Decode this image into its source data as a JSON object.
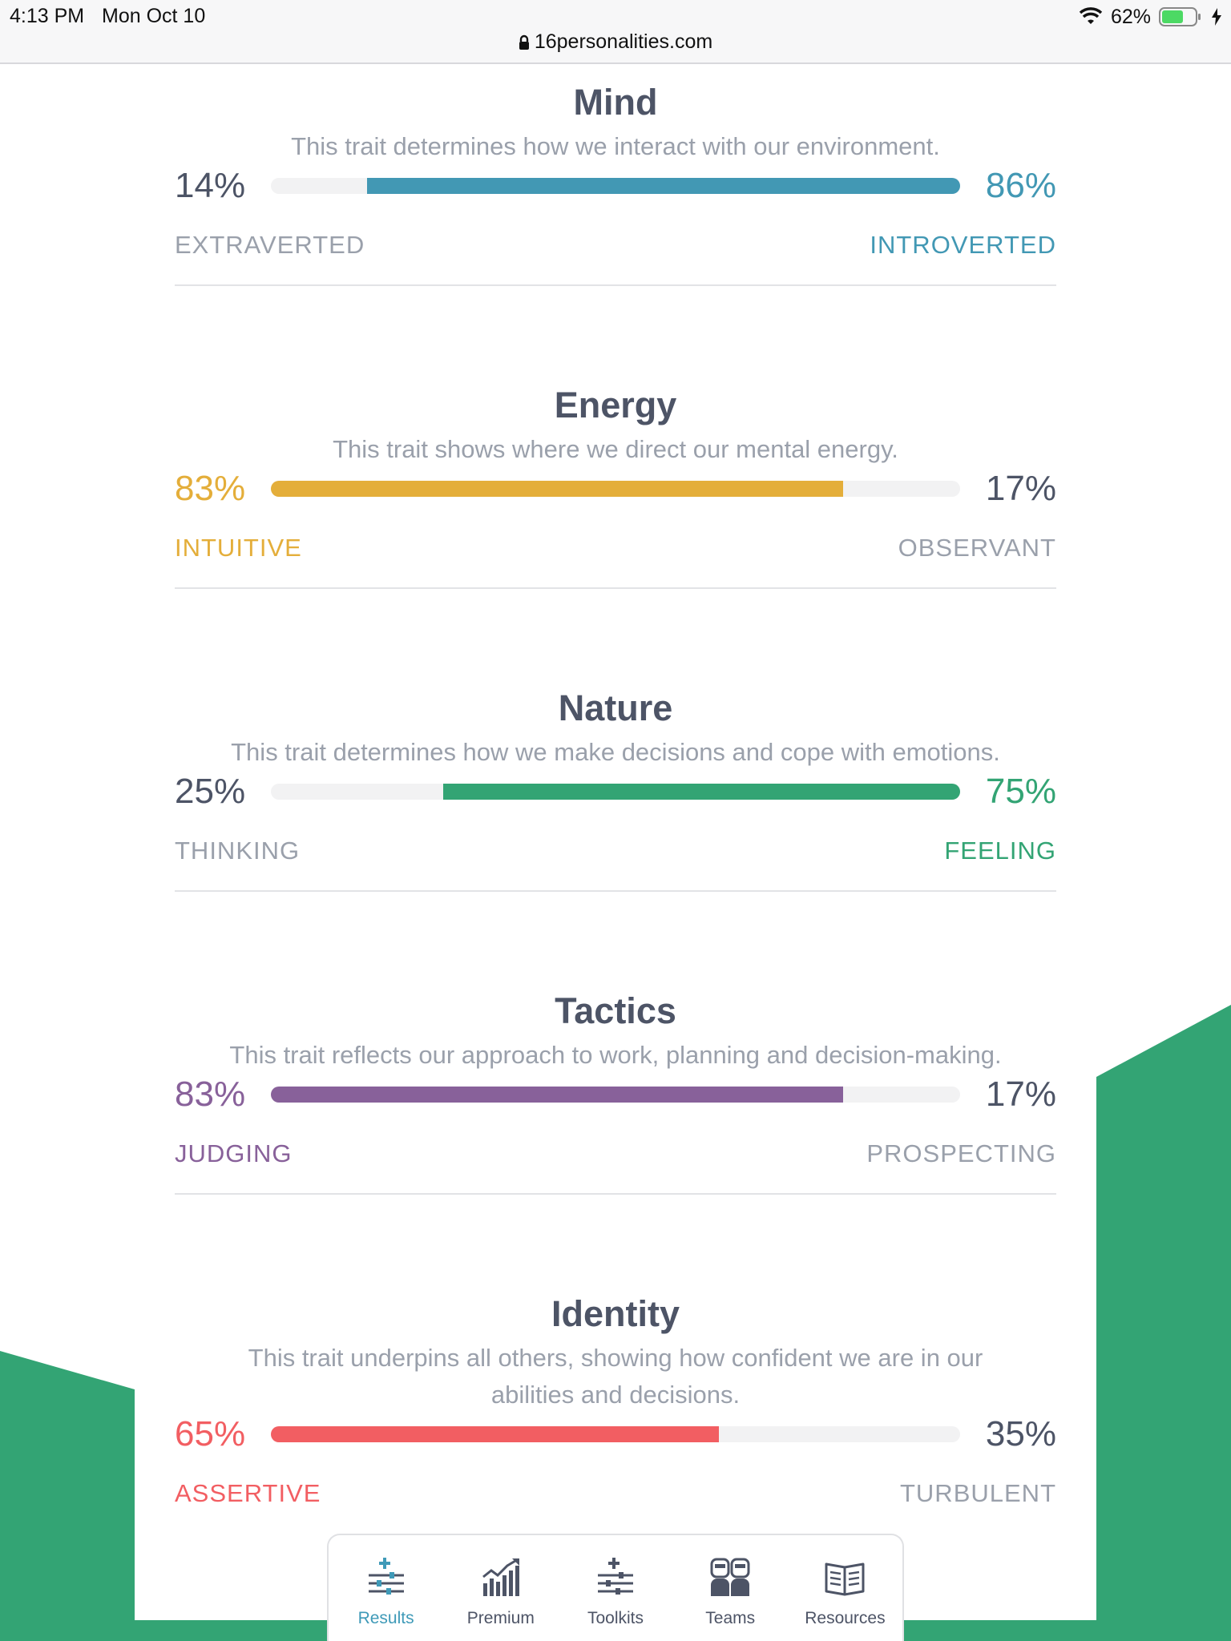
{
  "status_bar": {
    "time": "4:13 PM",
    "date": "Mon Oct 10",
    "battery": "62%",
    "url": "16personalities.com"
  },
  "colors": {
    "mind": "#4298b4",
    "energy": "#e4ae3a",
    "nature": "#33a474",
    "tactics": "#88619a",
    "identity": "#f25e62",
    "green_bg": "#33a474"
  },
  "traits": [
    {
      "title": "Mind",
      "description": "This trait determines how we interact with our environment.",
      "left_pct": "14%",
      "right_pct": "86%",
      "left_label": "EXTRAVERTED",
      "right_label": "INTROVERTED",
      "dominant": "right",
      "dominant_value": 86
    },
    {
      "title": "Energy",
      "description": "This trait shows where we direct our mental energy.",
      "left_pct": "83%",
      "right_pct": "17%",
      "left_label": "INTUITIVE",
      "right_label": "OBSERVANT",
      "dominant": "left",
      "dominant_value": 83
    },
    {
      "title": "Nature",
      "description": "This trait determines how we make decisions and cope with emotions.",
      "left_pct": "25%",
      "right_pct": "75%",
      "left_label": "THINKING",
      "right_label": "FEELING",
      "dominant": "right",
      "dominant_value": 75
    },
    {
      "title": "Tactics",
      "description": "This trait reflects our approach to work, planning and decision-making.",
      "left_pct": "83%",
      "right_pct": "17%",
      "left_label": "JUDGING",
      "right_label": "PROSPECTING",
      "dominant": "left",
      "dominant_value": 83
    },
    {
      "title": "Identity",
      "description_line1": "This trait underpins all others, showing how confident we are in our",
      "description_line2": "abilities and decisions.",
      "left_pct": "65%",
      "right_pct": "35%",
      "left_label": "ASSERTIVE",
      "right_label": "TURBULENT",
      "dominant": "left",
      "dominant_value": 65
    }
  ],
  "tabbar": {
    "tabs": [
      {
        "label": "Results",
        "icon": "sliders-plus-icon",
        "active": true
      },
      {
        "label": "Premium",
        "icon": "bar-chart-trend-icon",
        "active": false
      },
      {
        "label": "Toolkits",
        "icon": "sliders-plus-icon",
        "active": false
      },
      {
        "label": "Teams",
        "icon": "people-icon",
        "active": false
      },
      {
        "label": "Resources",
        "icon": "open-book-icon",
        "active": false
      }
    ]
  }
}
